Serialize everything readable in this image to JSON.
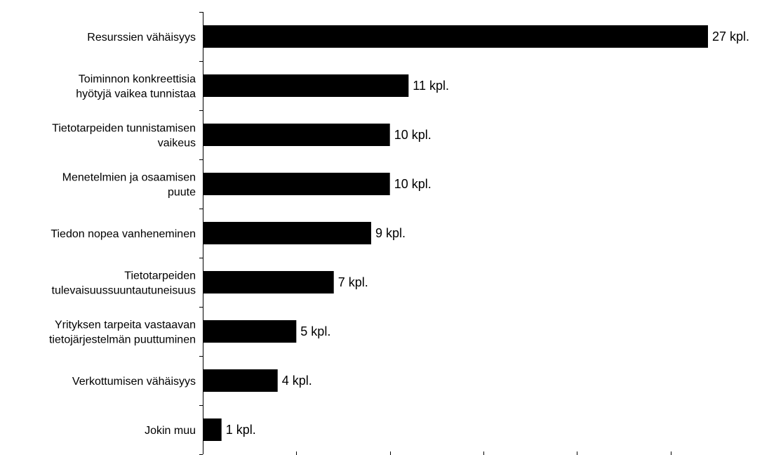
{
  "chart_data": {
    "type": "bar",
    "orientation": "horizontal",
    "categories": [
      [
        "Resurssien vähäisyys"
      ],
      [
        "Toiminnon konkreettisia",
        "hyötyjä vaikea tunnistaa"
      ],
      [
        "Tietotarpeiden tunnistamisen",
        "vaikeus"
      ],
      [
        "Menetelmien ja osaamisen",
        "puute"
      ],
      [
        "Tiedon nopea vanheneminen"
      ],
      [
        "Tietotarpeiden",
        "tulevaisuussuuntautuneisuus"
      ],
      [
        "Yrityksen tarpeita vastaavan",
        "tietojärjestelmän puuttuminen"
      ],
      [
        "Verkottumisen vähäisyys"
      ],
      [
        "Jokin muu"
      ]
    ],
    "values": [
      27,
      11,
      10,
      10,
      9,
      7,
      5,
      4,
      1
    ],
    "data_labels": [
      "27 kpl.",
      "11 kpl.",
      "10 kpl.",
      "10 kpl.",
      "9 kpl.",
      "7 kpl.",
      "5 kpl.",
      "4 kpl.",
      "1 kpl."
    ],
    "xlim": [
      0,
      30
    ],
    "x_tick_count": 6,
    "bar_color": "#000000",
    "grid": false,
    "title": "",
    "xlabel": "",
    "ylabel": ""
  }
}
